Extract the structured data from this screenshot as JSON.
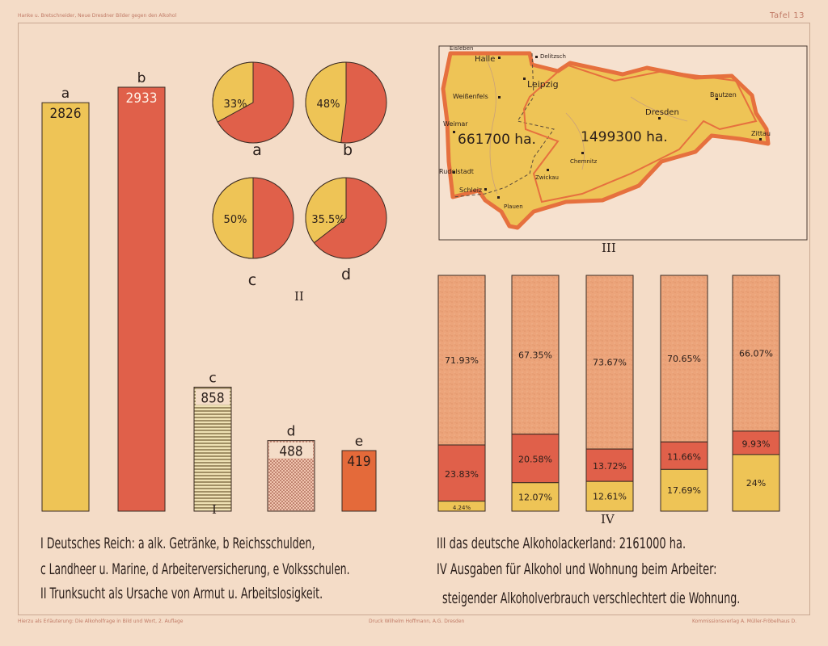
{
  "header": {
    "left_text": "Hanke u. Bretschneider, Neue Dresdner Bilder gegen den Alkohol",
    "right_text": "Tafel 13"
  },
  "footer": {
    "left_text": "Hierzu als Erläuterung: Die Alkoholfrage in Bild und Wort, 2. Auflage",
    "center_text": "Druck Wilhelm Hoffmann, A.G. Dresden",
    "right_text": "Kommissionsverlag A. Müller-Fröbelhaus D."
  },
  "colors": {
    "yellow": "#eec456",
    "red": "#e0604a",
    "orange_red": "#e46a3a",
    "peach_speckle": "#eca47a",
    "map_land": "#eec456",
    "map_border": "#e6703e",
    "ink": "#2a1e1a"
  },
  "legend": {
    "line1": "I Deutsches Reich:  a alk. Getränke, b Reichsschulden,",
    "line2": "c Landheer u. Marine, d Arbeiterversicherung, e Volksschulen.",
    "line3": "II Trunksucht als Ursache von Armut u. Arbeitslosigkeit.",
    "line4": "III das deutsche Alkoholackerland: 2161000 ha.",
    "line5": "IV Ausgaben für Alkohol und Wohnung beim Arbeiter:",
    "line6": "steigender Alkoholverbrauch verschlechtert die Wohnung."
  },
  "chart_data": [
    {
      "id": "I",
      "type": "bar",
      "label": "I",
      "categories": [
        "a",
        "b",
        "c",
        "d",
        "e"
      ],
      "values": [
        2826,
        2933,
        858,
        488,
        419
      ],
      "value_labels": [
        "2826",
        "2933",
        "858",
        "488",
        "419"
      ],
      "colors": [
        "#eec456",
        "#e0604a",
        "#e6d3a0",
        "#e9b49a",
        "#e46a3a"
      ],
      "patterns": [
        "solid",
        "solid",
        "hatch",
        "dots",
        "solid"
      ]
    },
    {
      "id": "II",
      "type": "pie",
      "label": "II",
      "pies": [
        {
          "name": "a",
          "value": 33,
          "label": "33%"
        },
        {
          "name": "b",
          "value": 48,
          "label": "48%"
        },
        {
          "name": "c",
          "value": 50,
          "label": "50%"
        },
        {
          "name": "d",
          "value": 35.5,
          "label": "35.5%"
        }
      ]
    },
    {
      "id": "III",
      "type": "map",
      "label": "III",
      "areas": [
        {
          "label": "661700 ha.",
          "value": 661700
        },
        {
          "label": "1499300 ha.",
          "value": 1499300
        }
      ],
      "places": [
        "Eisleben",
        "Halle",
        "Delitzsch",
        "Leipzig",
        "Weißenfels",
        "Weimar",
        "Rudolstadt",
        "Schleiz",
        "Plauen",
        "Zwickau",
        "Chemnitz",
        "Dresden",
        "Bautzen",
        "Zittau"
      ]
    },
    {
      "id": "IV",
      "type": "bar",
      "stacked": true,
      "label": "IV",
      "series_order": [
        "yellow",
        "red",
        "peach"
      ],
      "bars": [
        {
          "yellow": 4.24,
          "red": 23.83,
          "peach": 71.93,
          "labels": [
            "4.24%",
            "23.83%",
            "71.93%"
          ]
        },
        {
          "yellow": 12.07,
          "red": 20.58,
          "peach": 67.35,
          "labels": [
            "12.07%",
            "20.58%",
            "67.35%"
          ]
        },
        {
          "yellow": 12.61,
          "red": 13.72,
          "peach": 73.67,
          "labels": [
            "12.61%",
            "13.72%",
            "73.67%"
          ]
        },
        {
          "yellow": 17.69,
          "red": 11.66,
          "peach": 70.65,
          "labels": [
            "17.69%",
            "11.66%",
            "70.65%"
          ]
        },
        {
          "yellow": 24.0,
          "red": 9.93,
          "peach": 66.07,
          "labels": [
            "24%",
            "9.93%",
            "66.07%"
          ]
        }
      ]
    }
  ]
}
